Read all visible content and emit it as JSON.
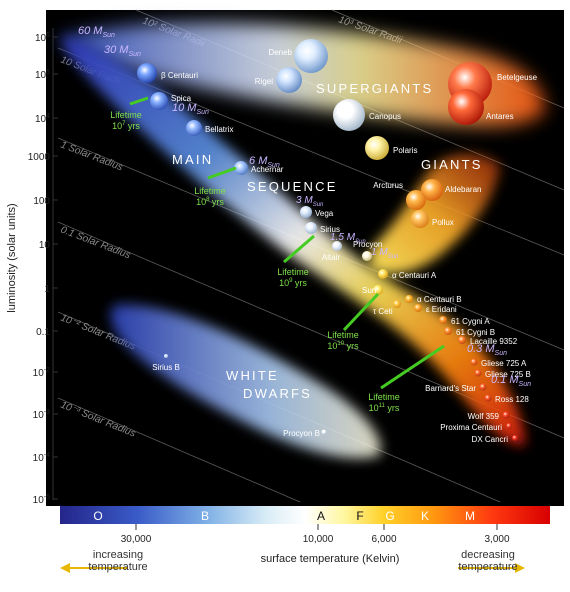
{
  "axes": {
    "y_label": "luminosity (solar units)",
    "x_label": "surface temperature (Kelvin)",
    "y_ticks": [
      {
        "base": "10",
        "exp": "6"
      },
      {
        "base": "10",
        "exp": "5"
      },
      {
        "base": "10",
        "exp": "4"
      },
      {
        "base": "1000",
        "exp": ""
      },
      {
        "base": "100",
        "exp": ""
      },
      {
        "base": "10",
        "exp": ""
      },
      {
        "base": "1",
        "exp": ""
      },
      {
        "base": "0.1",
        "exp": ""
      },
      {
        "base": "10",
        "exp": "-2"
      },
      {
        "base": "10",
        "exp": "-3"
      },
      {
        "base": "10",
        "exp": "-4"
      },
      {
        "base": "10",
        "exp": "-5"
      }
    ],
    "x_ticks": [
      "30,000",
      "10,000",
      "6,000",
      "3,000"
    ],
    "left_arrow_label": [
      "increasing",
      "temperature"
    ],
    "right_arrow_label": [
      "decreasing",
      "temperature"
    ]
  },
  "spectral_classes": [
    "O",
    "B",
    "A",
    "F",
    "G",
    "K",
    "M"
  ],
  "radius_lines": [
    "10³ Solar Radii",
    "10² Solar Radii",
    "10 Solar Radii",
    "1 Solar Radius",
    "0.1 Solar Radius",
    "10⁻² Solar Radius",
    "10⁻³ Solar Radius"
  ],
  "regions": {
    "supergiants": "SUPERGIANTS",
    "giants": "GIANTS",
    "main": "MAIN",
    "sequence": "SEQUENCE",
    "white": "WHITE",
    "dwarfs": "DWARFS"
  },
  "masses": [
    {
      "num": "60",
      "m": "M",
      "sub": "Sun"
    },
    {
      "num": "30",
      "m": "M",
      "sub": "Sun"
    },
    {
      "num": "10",
      "m": "M",
      "sub": "Sun"
    },
    {
      "num": "6",
      "m": "M",
      "sub": "Sun"
    },
    {
      "num": "3",
      "m": "M",
      "sub": "Sun"
    },
    {
      "num": "1.5",
      "m": "M",
      "sub": "Sun"
    },
    {
      "num": "1",
      "m": "M",
      "sub": "Sun"
    },
    {
      "num": "0.3",
      "m": "M",
      "sub": "Sun"
    },
    {
      "num": "0.1",
      "m": "M",
      "sub": "Sun"
    }
  ],
  "lifetimes": [
    {
      "label": "Lifetime",
      "value": "10",
      "exp": "7",
      "unit": "yrs"
    },
    {
      "label": "Lifetime",
      "value": "10",
      "exp": "8",
      "unit": "yrs"
    },
    {
      "label": "Lifetime",
      "value": "10",
      "exp": "9",
      "unit": "yrs"
    },
    {
      "label": "Lifetime",
      "value": "10",
      "exp": "10",
      "unit": "yrs"
    },
    {
      "label": "Lifetime",
      "value": "10",
      "exp": "11",
      "unit": "yrs"
    }
  ],
  "stars": [
    {
      "name": "Deneb",
      "color": "#dfeeff",
      "edge": "#6b93c9"
    },
    {
      "name": "Rigel",
      "color": "#cfe3ff",
      "edge": "#5f86bf"
    },
    {
      "name": "Canopus",
      "color": "#ffffff",
      "edge": "#9eb2c6"
    },
    {
      "name": "Polaris",
      "color": "#fff3a8",
      "edge": "#c8a830"
    },
    {
      "name": "Betelgeuse",
      "color": "#ff7a4a",
      "edge": "#b81a0a"
    },
    {
      "name": "Antares",
      "color": "#ff6a3a",
      "edge": "#a81405"
    },
    {
      "name": "Aldebaran",
      "color": "#ffb347",
      "edge": "#d55a0a"
    },
    {
      "name": "Arcturus",
      "color": "#ffb84a",
      "edge": "#d5650a"
    },
    {
      "name": "Pollux",
      "color": "#ffc460",
      "edge": "#d87a12"
    },
    {
      "name": "β Centauri",
      "color": "#7aa6ff",
      "edge": "#1f3fa8"
    },
    {
      "name": "Spica",
      "color": "#88b0ff",
      "edge": "#2a4bb0"
    },
    {
      "name": "Bellatrix",
      "color": "#98bcff",
      "edge": "#3558b8"
    },
    {
      "name": "Achernar",
      "color": "#b0cfff",
      "edge": "#4c74c2"
    },
    {
      "name": "Vega",
      "color": "#e6f0ff",
      "edge": "#8aa6c8"
    },
    {
      "name": "Sirius",
      "color": "#eef4ff",
      "edge": "#96aecb"
    },
    {
      "name": "Altair",
      "color": "#f4f8ff",
      "edge": "#a8bad0"
    },
    {
      "name": "Procyon",
      "color": "#fffbe6",
      "edge": "#c8b878"
    },
    {
      "name": "Sun",
      "color": "#fff27a",
      "edge": "#d9a310"
    },
    {
      "name": "α Centauri A",
      "color": "#ffe866",
      "edge": "#d69a12"
    },
    {
      "name": "α Centauri B",
      "color": "#ffc23a",
      "edge": "#d2740c"
    },
    {
      "name": "τ Ceti",
      "color": "#ffce4a",
      "edge": "#d48610"
    },
    {
      "name": "ε Eridani",
      "color": "#ffb43a",
      "edge": "#cf680c"
    },
    {
      "name": "61 Cygni A",
      "color": "#ffa336",
      "edge": "#c9580c"
    },
    {
      "name": "61 Cygni B",
      "color": "#ff9634",
      "edge": "#c24c0c"
    },
    {
      "name": "Lacaille 9352",
      "color": "#ff8a32",
      "edge": "#bb420c"
    },
    {
      "name": "Gliese 725 A",
      "color": "#ff7a30",
      "edge": "#b5380c"
    },
    {
      "name": "Gliese 725 B",
      "color": "#ff6e2e",
      "edge": "#ae2f0c"
    },
    {
      "name": "Barnard's Star",
      "color": "#ff6a2e",
      "edge": "#aa2a0c"
    },
    {
      "name": "Ross 128",
      "color": "#ff5e2c",
      "edge": "#a4220c"
    },
    {
      "name": "Wolf 359",
      "color": "#ff4e2a",
      "edge": "#9a1a0a"
    },
    {
      "name": "Proxima Centauri",
      "color": "#ff462a",
      "edge": "#94160a"
    },
    {
      "name": "DX Cancri",
      "color": "#ff3a28",
      "edge": "#8c100a"
    },
    {
      "name": "Sirius B",
      "color": "#dfe9ff",
      "edge": "#8aa6c8"
    },
    {
      "name": "Procyon B",
      "color": "#ffffff",
      "edge": "#a8bad0"
    }
  ]
}
